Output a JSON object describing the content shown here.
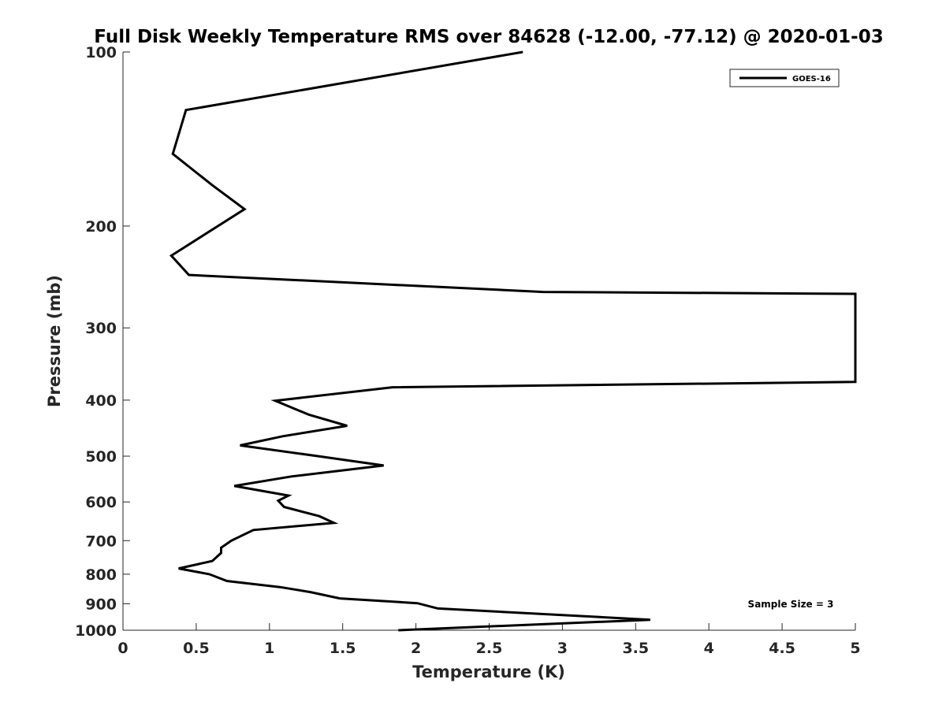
{
  "chart_data": {
    "type": "line",
    "title": "Full Disk Weekly Temperature RMS over 84628 (-12.00, -77.12) @ 2020-01-03",
    "xlabel": "Temperature (K)",
    "ylabel": "Pressure (mb)",
    "xlim": [
      0,
      5
    ],
    "ylim": [
      1000,
      100
    ],
    "y_scale": "log",
    "y_reversed": true,
    "x_ticks": [
      0,
      0.5,
      1,
      1.5,
      2,
      2.5,
      3,
      3.5,
      4,
      4.5,
      5
    ],
    "x_tick_labels": [
      "0",
      "0.5",
      "1",
      "1.5",
      "2",
      "2.5",
      "3",
      "3.5",
      "4",
      "4.5",
      "5"
    ],
    "y_ticks": [
      100,
      200,
      300,
      400,
      500,
      600,
      700,
      800,
      900,
      1000
    ],
    "y_tick_labels": [
      "100",
      "200",
      "300",
      "400",
      "500",
      "600",
      "700",
      "800",
      "900",
      "1000"
    ],
    "grid": false,
    "legend_position": "top-right",
    "annotation": "Sample Size = 3",
    "series": [
      {
        "name": "GOES-16",
        "color": "#000000",
        "points": [
          [
            2.73,
            100
          ],
          [
            0.43,
            126
          ],
          [
            0.34,
            150
          ],
          [
            0.61,
            170
          ],
          [
            0.83,
            187
          ],
          [
            0.33,
            225
          ],
          [
            0.45,
            243
          ],
          [
            2.87,
            260
          ],
          [
            5.0,
            262
          ],
          [
            5.0,
            372
          ],
          [
            1.84,
            380
          ],
          [
            1.04,
            401
          ],
          [
            1.27,
            424
          ],
          [
            1.53,
            443
          ],
          [
            1.09,
            462
          ],
          [
            0.8,
            479
          ],
          [
            1.33,
            500
          ],
          [
            1.78,
            519
          ],
          [
            1.15,
            542
          ],
          [
            0.76,
            563
          ],
          [
            1.13,
            585
          ],
          [
            1.06,
            597
          ],
          [
            1.1,
            612
          ],
          [
            1.34,
            635
          ],
          [
            1.44,
            652
          ],
          [
            0.89,
            671
          ],
          [
            0.74,
            700
          ],
          [
            0.67,
            720
          ],
          [
            0.67,
            735
          ],
          [
            0.61,
            759
          ],
          [
            0.38,
            782
          ],
          [
            0.59,
            800
          ],
          [
            0.71,
            822
          ],
          [
            1.07,
            842
          ],
          [
            1.28,
            859
          ],
          [
            1.48,
            881
          ],
          [
            2.01,
            898
          ],
          [
            2.15,
            917
          ],
          [
            3.6,
            959
          ],
          [
            1.88,
            1000
          ]
        ]
      }
    ]
  }
}
